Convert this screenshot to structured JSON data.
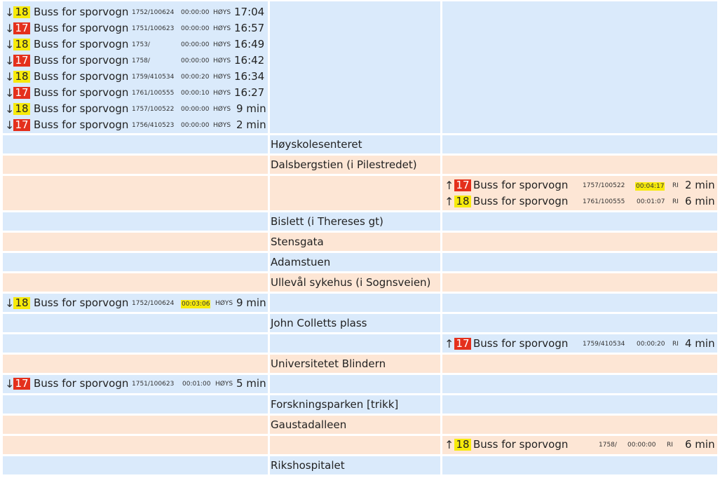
{
  "direction_symbols": {
    "down": "↓",
    "up": "↑"
  },
  "line_colors": {
    "17": "#e4301c",
    "18": "#f7ea0b"
  },
  "row_colors": {
    "blue": "#daeafb",
    "peach": "#fde6d5"
  },
  "departures_top": [
    {
      "line": "18",
      "destination": "Buss for sporvogn",
      "vehicle": "1752/100624",
      "delay": "00:00:00",
      "position": "HØYS",
      "time": "17:04"
    },
    {
      "line": "17",
      "destination": "Buss for sporvogn",
      "vehicle": "1751/100623",
      "delay": "00:00:00",
      "position": "HØYS",
      "time": "16:57"
    },
    {
      "line": "18",
      "destination": "Buss for sporvogn",
      "vehicle": "1753/",
      "delay": "00:00:00",
      "position": "HØYS",
      "time": "16:49"
    },
    {
      "line": "17",
      "destination": "Buss for sporvogn",
      "vehicle": "1758/",
      "delay": "00:00:00",
      "position": "HØYS",
      "time": "16:42"
    },
    {
      "line": "18",
      "destination": "Buss for sporvogn",
      "vehicle": "1759/410534",
      "delay": "00:00:20",
      "position": "HØYS",
      "time": "16:34"
    },
    {
      "line": "17",
      "destination": "Buss for sporvogn",
      "vehicle": "1761/100555",
      "delay": "00:00:10",
      "position": "HØYS",
      "time": "16:27"
    },
    {
      "line": "18",
      "destination": "Buss for sporvogn",
      "vehicle": "1757/100522",
      "delay": "00:00:00",
      "position": "HØYS",
      "time": "9 min"
    },
    {
      "line": "17",
      "destination": "Buss for sporvogn",
      "vehicle": "1756/410523",
      "delay": "00:00:00",
      "position": "HØYS",
      "time": "2 min"
    }
  ],
  "stops": [
    "Høyskolesenteret",
    "Dalsbergstien (i Pilestredet)",
    "Bislett (i Thereses gt)",
    "Stensgata",
    "Adamstuen",
    "Ullevål sykehus (i Sognsveien)",
    "John Colletts plass",
    "Universitetet Blindern",
    "Forskningsparken [trikk]",
    "Gaustadalleen",
    "Rikshospitalet"
  ],
  "between": {
    "dalsbergstien_bislett_up": [
      {
        "line": "17",
        "destination": "Buss for sporvogn",
        "vehicle": "1757/100522",
        "delay": "00:04:17",
        "delay_highlight": true,
        "position": "RI",
        "time": "2 min"
      },
      {
        "line": "18",
        "destination": "Buss for sporvogn",
        "vehicle": "1761/100555",
        "delay": "00:01:07",
        "delay_highlight": false,
        "position": "RI",
        "time": "6 min"
      }
    ],
    "ulleval_johncolletts_down": [
      {
        "line": "18",
        "destination": "Buss for sporvogn",
        "vehicle": "1752/100624",
        "delay": "00:03:06",
        "delay_highlight": true,
        "position": "HØYS",
        "time": "9 min"
      }
    ],
    "johncolletts_blindern_up": [
      {
        "line": "17",
        "destination": "Buss for sporvogn",
        "vehicle": "1759/410534",
        "delay": "00:00:20",
        "delay_highlight": false,
        "position": "RI",
        "time": "4 min"
      }
    ],
    "blindern_forskningsparken_down": [
      {
        "line": "17",
        "destination": "Buss for sporvogn",
        "vehicle": "1751/100623",
        "delay": "00:01:00",
        "delay_highlight": false,
        "position": "HØYS",
        "time": "5 min"
      }
    ],
    "gaustadalleen_rikshospitalet_up": [
      {
        "line": "18",
        "destination": "Buss for sporvogn",
        "vehicle": "1758/",
        "delay": "00:00:00",
        "delay_highlight": false,
        "position": "RI",
        "time": "6 min"
      }
    ]
  }
}
